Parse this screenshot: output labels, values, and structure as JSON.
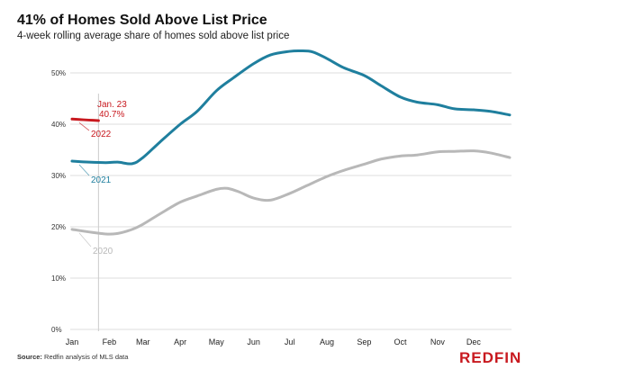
{
  "title": "41% of Homes Sold Above List Price",
  "subtitle": "4-week rolling average share of homes sold above list price",
  "source_label": "Source:",
  "source_text": "Redfin analysis of MLS data",
  "brand": "REDFIN",
  "colors": {
    "2022": "#c8191f",
    "2021": "#1f7f9e",
    "2020": "#b8b8b8",
    "grid": "#dddddd",
    "marker": "#cccccc"
  },
  "chart_data": {
    "type": "line",
    "title": "41% of Homes Sold Above List Price",
    "subtitle": "4-week rolling average share of homes sold above list price",
    "xlabel": "",
    "ylabel": "",
    "x_tick_labels": [
      "Jan",
      "Feb",
      "Mar",
      "Apr",
      "May",
      "Jun",
      "Jul",
      "Aug",
      "Sep",
      "Oct",
      "Nov",
      "Dec"
    ],
    "y_tick_labels": [
      "0%",
      "10%",
      "20%",
      "30%",
      "40%",
      "50%"
    ],
    "ylim": [
      0,
      56
    ],
    "xlim": [
      "Jan 1",
      "Dec 31"
    ],
    "grid": true,
    "marker_date": "Jan 23",
    "annotation": {
      "date_label": "Jan. 23",
      "value_label": "40.7%"
    },
    "series": [
      {
        "name": "2022",
        "x": [
          "Jan 1",
          "Jan 8",
          "Jan 15",
          "Jan 23"
        ],
        "values": [
          41.0,
          40.9,
          40.8,
          40.7
        ]
      },
      {
        "name": "2021",
        "x": [
          "Jan 1",
          "Jan 15",
          "Jan 29",
          "Feb 8",
          "Feb 20",
          "Mar 1",
          "Mar 15",
          "Apr 1",
          "Apr 15",
          "May 1",
          "May 15",
          "Jun 1",
          "Jun 15",
          "Jul 1",
          "Jul 10",
          "Jul 20",
          "Aug 1",
          "Aug 15",
          "Sep 1",
          "Sep 15",
          "Oct 1",
          "Oct 15",
          "Nov 1",
          "Nov 15",
          "Dec 1",
          "Dec 15",
          "Dec 31"
        ],
        "values": [
          32.8,
          32.6,
          32.5,
          32.6,
          32.3,
          33.5,
          36.5,
          40.0,
          42.5,
          46.5,
          49.0,
          51.8,
          53.5,
          54.2,
          54.3,
          54.1,
          52.8,
          51.0,
          49.5,
          47.5,
          45.3,
          44.3,
          43.8,
          43.0,
          42.8,
          42.5,
          41.8
        ]
      },
      {
        "name": "2020",
        "x": [
          "Jan 1",
          "Jan 15",
          "Jan 29",
          "Feb 8",
          "Feb 20",
          "Mar 1",
          "Mar 15",
          "Apr 1",
          "Apr 15",
          "May 1",
          "May 10",
          "May 20",
          "Jun 1",
          "Jun 15",
          "Jul 1",
          "Jul 15",
          "Aug 1",
          "Aug 15",
          "Sep 1",
          "Sep 15",
          "Oct 1",
          "Oct 15",
          "Nov 1",
          "Nov 15",
          "Dec 1",
          "Dec 15",
          "Dec 31"
        ],
        "values": [
          19.5,
          19.0,
          18.6,
          18.7,
          19.5,
          20.5,
          22.5,
          24.8,
          26.0,
          27.3,
          27.5,
          26.8,
          25.6,
          25.2,
          26.5,
          28.0,
          29.8,
          31.0,
          32.2,
          33.2,
          33.8,
          34.0,
          34.6,
          34.7,
          34.8,
          34.4,
          33.5
        ]
      }
    ]
  }
}
